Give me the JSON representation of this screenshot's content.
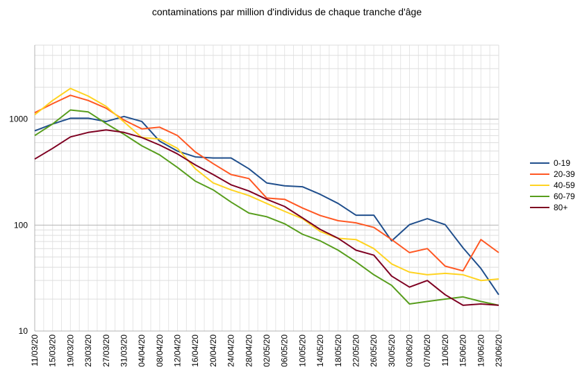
{
  "chart_data": {
    "type": "line",
    "title": "contaminations par million d'individus de chaque tranche d'âge",
    "xlabel": "",
    "ylabel": "",
    "yscale": "log",
    "ylim": [
      10,
      5000
    ],
    "ytick_labels": [
      "10",
      "100",
      "1000"
    ],
    "grid": true,
    "legend_position": "right",
    "x": [
      "11/03/20",
      "15/03/20",
      "19/03/20",
      "23/03/20",
      "27/03/20",
      "31/03/20",
      "04/04/20",
      "08/04/20",
      "12/04/20",
      "16/04/20",
      "20/04/20",
      "24/04/20",
      "28/04/20",
      "02/05/20",
      "06/05/20",
      "10/05/20",
      "14/05/20",
      "18/05/20",
      "22/05/20",
      "26/05/20",
      "30/05/20",
      "03/06/20",
      "07/06/20",
      "11/06/20",
      "15/06/20",
      "19/06/20",
      "23/06/20"
    ],
    "series": [
      {
        "name": "0-19",
        "color": "#1f4e8c",
        "values": [
          775,
          900,
          1020,
          1020,
          950,
          1060,
          950,
          620,
          500,
          440,
          430,
          430,
          340,
          250,
          235,
          230,
          195,
          160,
          124,
          124,
          71,
          101,
          115,
          101,
          61,
          39,
          22
        ]
      },
      {
        "name": "20-39",
        "color": "#ff5722",
        "values": [
          1150,
          1400,
          1680,
          1500,
          1270,
          980,
          810,
          840,
          700,
          490,
          380,
          300,
          275,
          180,
          175,
          145,
          123,
          110,
          105,
          95,
          73,
          55,
          60,
          41,
          37,
          73,
          55
        ]
      },
      {
        "name": "40-59",
        "color": "#ffd320",
        "values": [
          1100,
          1500,
          1950,
          1650,
          1320,
          940,
          670,
          650,
          530,
          340,
          250,
          215,
          190,
          160,
          135,
          115,
          87,
          75,
          73,
          60,
          43,
          36,
          34,
          35,
          34,
          30,
          31
        ]
      },
      {
        "name": "60-79",
        "color": "#579d1c",
        "values": [
          700,
          900,
          1220,
          1170,
          910,
          720,
          560,
          460,
          350,
          260,
          215,
          165,
          130,
          120,
          103,
          82,
          71,
          58,
          45,
          34,
          27,
          18,
          19,
          20,
          21,
          19,
          17.5
        ]
      },
      {
        "name": "80+",
        "color": "#7e0021",
        "values": [
          420,
          530,
          680,
          750,
          790,
          750,
          670,
          570,
          470,
          370,
          300,
          240,
          210,
          175,
          150,
          117,
          91,
          75,
          58,
          52,
          33,
          26,
          30,
          22,
          17.5,
          18,
          17.5
        ]
      }
    ]
  }
}
